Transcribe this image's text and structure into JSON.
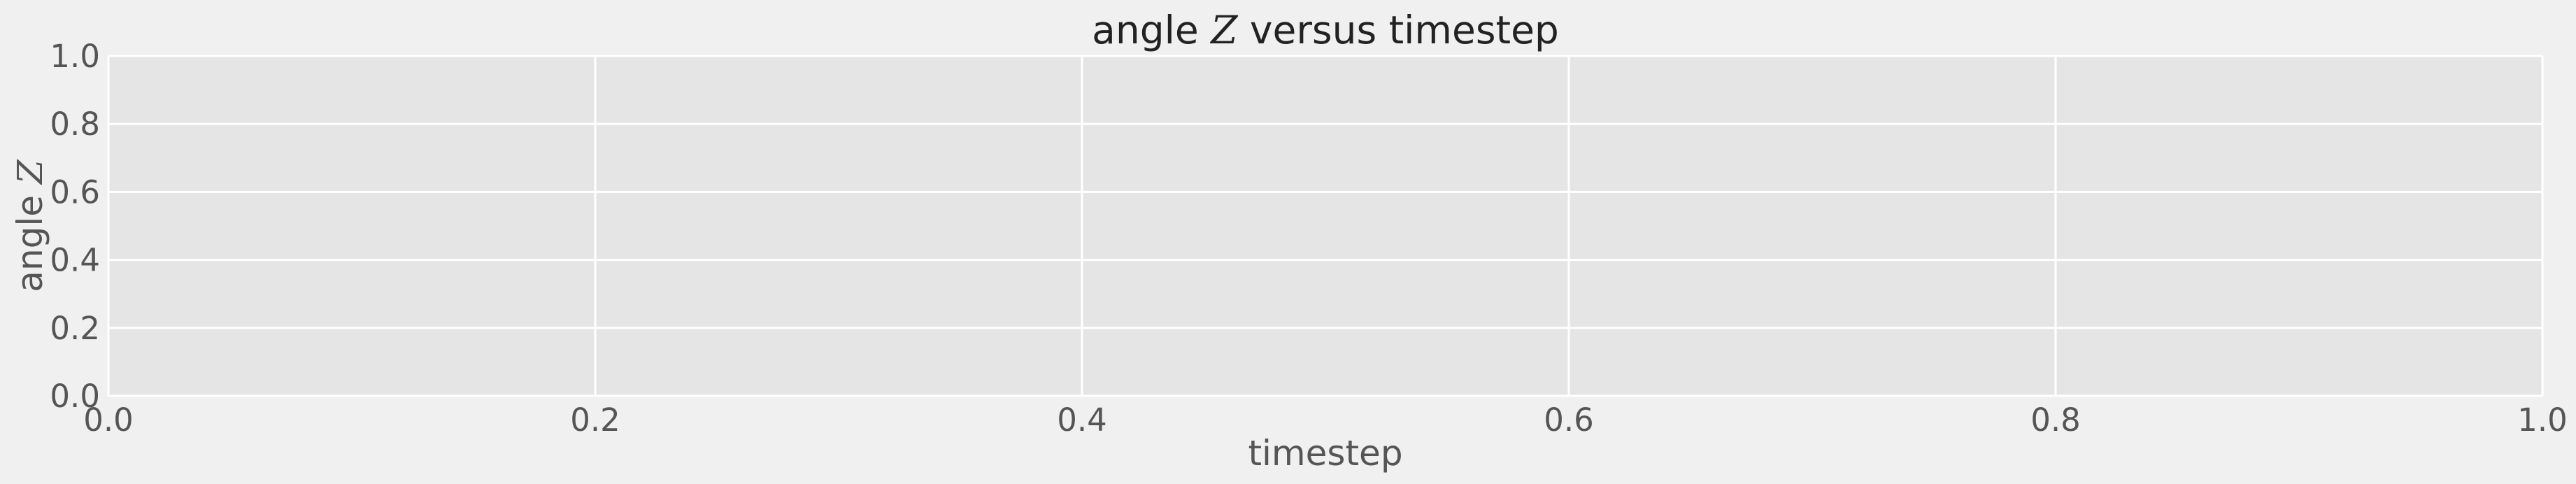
{
  "chart_data": {
    "type": "line",
    "title_prefix": "angle ",
    "title_var": "Z",
    "title_suffix": " versus timestep",
    "xlabel": "timestep",
    "ylabel_prefix": "angle ",
    "ylabel_var": "Z",
    "xlim": [
      0.0,
      1.0
    ],
    "ylim": [
      0.0,
      1.0
    ],
    "xticks": [
      "0.0",
      "0.2",
      "0.4",
      "0.6",
      "0.8",
      "1.0"
    ],
    "yticks": [
      "0.0",
      "0.2",
      "0.4",
      "0.6",
      "0.8",
      "1.0"
    ],
    "grid": true,
    "series": []
  },
  "colors": {
    "figure_background": "#f0f0f0",
    "axes_background": "#e5e5e5",
    "grid": "#ffffff",
    "text": "#555555",
    "title": "#222222"
  }
}
